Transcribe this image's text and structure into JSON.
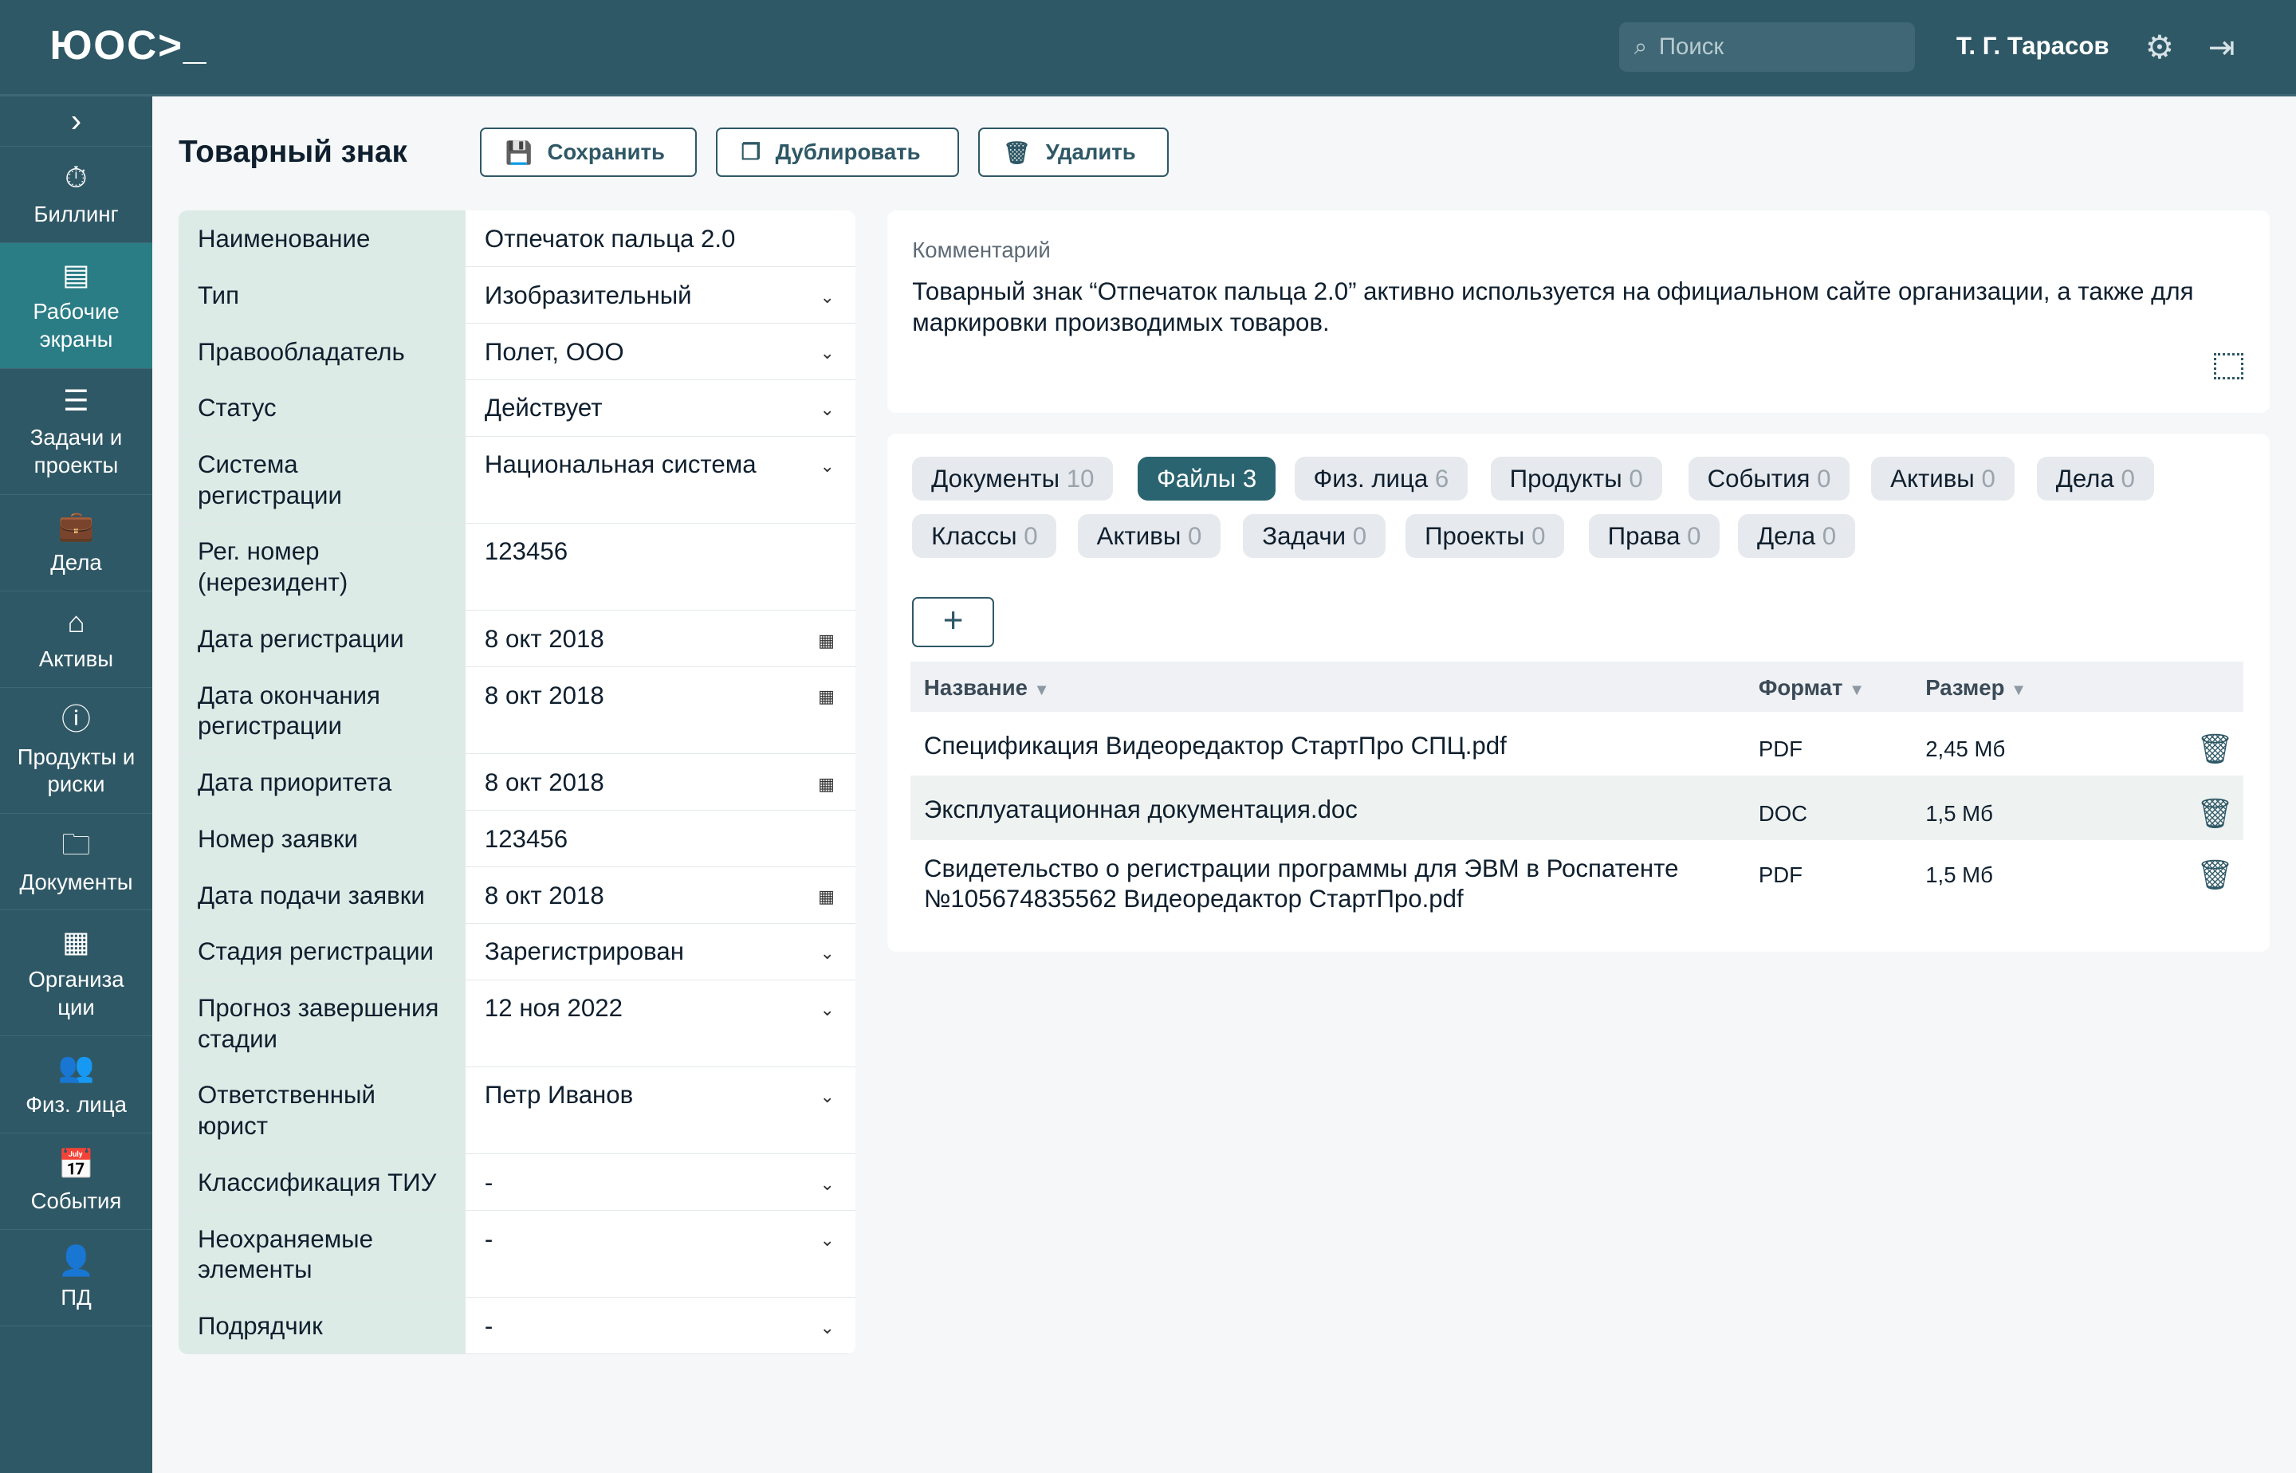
{
  "header": {
    "logo": "ЮОС>_",
    "search_placeholder": "Поиск",
    "user": "Т. Г. Тарасов"
  },
  "sidebar": {
    "items": [
      {
        "label": "Биллинг",
        "icon": "billing-icon",
        "glyph": "⏱"
      },
      {
        "label": "Рабочие экраны",
        "icon": "screens-icon",
        "glyph": "▤",
        "active": true
      },
      {
        "label": "Задачи и проекты",
        "icon": "tasks-icon",
        "glyph": "☰"
      },
      {
        "label": "Дела",
        "icon": "briefcase-icon",
        "glyph": "💼"
      },
      {
        "label": "Активы",
        "icon": "assets-icon",
        "glyph": "⌂"
      },
      {
        "label": "Продукты и риски",
        "icon": "alert-icon",
        "glyph": "ⓘ"
      },
      {
        "label": "Документы",
        "icon": "folder-icon",
        "glyph": "🗀"
      },
      {
        "label": "Организа ции",
        "icon": "organization-icon",
        "glyph": "▦"
      },
      {
        "label": "Физ. лица",
        "icon": "people-icon",
        "glyph": "👥"
      },
      {
        "label": "События",
        "icon": "calendar-icon",
        "glyph": "📅"
      },
      {
        "label": "ПД",
        "icon": "person-icon",
        "glyph": "👤"
      }
    ]
  },
  "page": {
    "title": "Товарный знак",
    "save": "Сохранить",
    "duplicate": "Дублировать",
    "delete": "Удалить"
  },
  "form": [
    {
      "label": "Наименование",
      "value": "Отпечаток пальца 2.0",
      "kind": "text"
    },
    {
      "label": "Тип",
      "value": "Изобразительный",
      "kind": "select"
    },
    {
      "label": "Правообладатель",
      "value": "Полет, ООО",
      "kind": "select"
    },
    {
      "label": "Статус",
      "value": "Действует",
      "kind": "select"
    },
    {
      "label": "Система регистрации",
      "value": "Национальная система",
      "kind": "select"
    },
    {
      "label": "Рег. номер (нерезидент)",
      "value": "123456",
      "kind": "text"
    },
    {
      "label": "Дата регистрации",
      "value": "8 окт 2018",
      "kind": "date"
    },
    {
      "label": "Дата окончания регистрации",
      "value": "8 окт 2018",
      "kind": "date"
    },
    {
      "label": "Дата приоритета",
      "value": "8 окт 2018",
      "kind": "date"
    },
    {
      "label": "Номер заявки",
      "value": "123456",
      "kind": "text"
    },
    {
      "label": "Дата подачи заявки",
      "value": "8 окт 2018",
      "kind": "date"
    },
    {
      "label": "Стадия регистрации",
      "value": "Зарегистрирован",
      "kind": "select"
    },
    {
      "label": "Прогноз завершения стадии",
      "value": "12 ноя 2022",
      "kind": "select"
    },
    {
      "label": "Ответственный юрист",
      "value": "Петр Иванов",
      "kind": "select"
    },
    {
      "label": "Классификация ТИУ",
      "value": "-",
      "kind": "select"
    },
    {
      "label": "Неохраняемые элементы",
      "value": "-",
      "kind": "select"
    },
    {
      "label": "Подрядчик",
      "value": "-",
      "kind": "select"
    }
  ],
  "comment": {
    "label": "Комментарий",
    "text": "Товарный знак “Отпечаток пальца 2.0” активно используется на официальном сайте организации, а также для маркировки производимых товаров."
  },
  "tabs": [
    {
      "label": "Документы",
      "count": "10"
    },
    {
      "label": "Файлы",
      "count": "3",
      "active": true
    },
    {
      "label": "Физ. лица",
      "count": "6"
    },
    {
      "label": "Продукты",
      "count": "0"
    },
    {
      "label": "События",
      "count": "0"
    },
    {
      "label": "Активы",
      "count": "0"
    },
    {
      "label": "Дела",
      "count": "0"
    },
    {
      "label": "Классы",
      "count": "0"
    },
    {
      "label": "Активы",
      "count": "0"
    },
    {
      "label": "Задачи",
      "count": "0"
    },
    {
      "label": "Проекты",
      "count": "0"
    },
    {
      "label": "Права",
      "count": "0"
    },
    {
      "label": "Дела",
      "count": "0"
    }
  ],
  "table": {
    "columns": [
      "Название",
      "Формат",
      "Размер"
    ],
    "rows": [
      {
        "name": "Спецификация Видеоредактор СтартПро СПЦ.pdf",
        "format": "PDF",
        "size": "2,45 Мб"
      },
      {
        "name": "Эксплуатационная документация.doc",
        "format": "DOC",
        "size": "1,5 Мб"
      },
      {
        "name": "Свидетельство о регистрации программы для ЭВМ в Роспатенте №105674835562 Видеоредактор СтартПро.pdf",
        "format": "PDF",
        "size": "1,5 Мб"
      }
    ]
  },
  "colors": {
    "header": "#2f5866",
    "active_nav": "#2a7c85",
    "active_tab": "#2a6470",
    "label_bg": "#dcebe6"
  }
}
